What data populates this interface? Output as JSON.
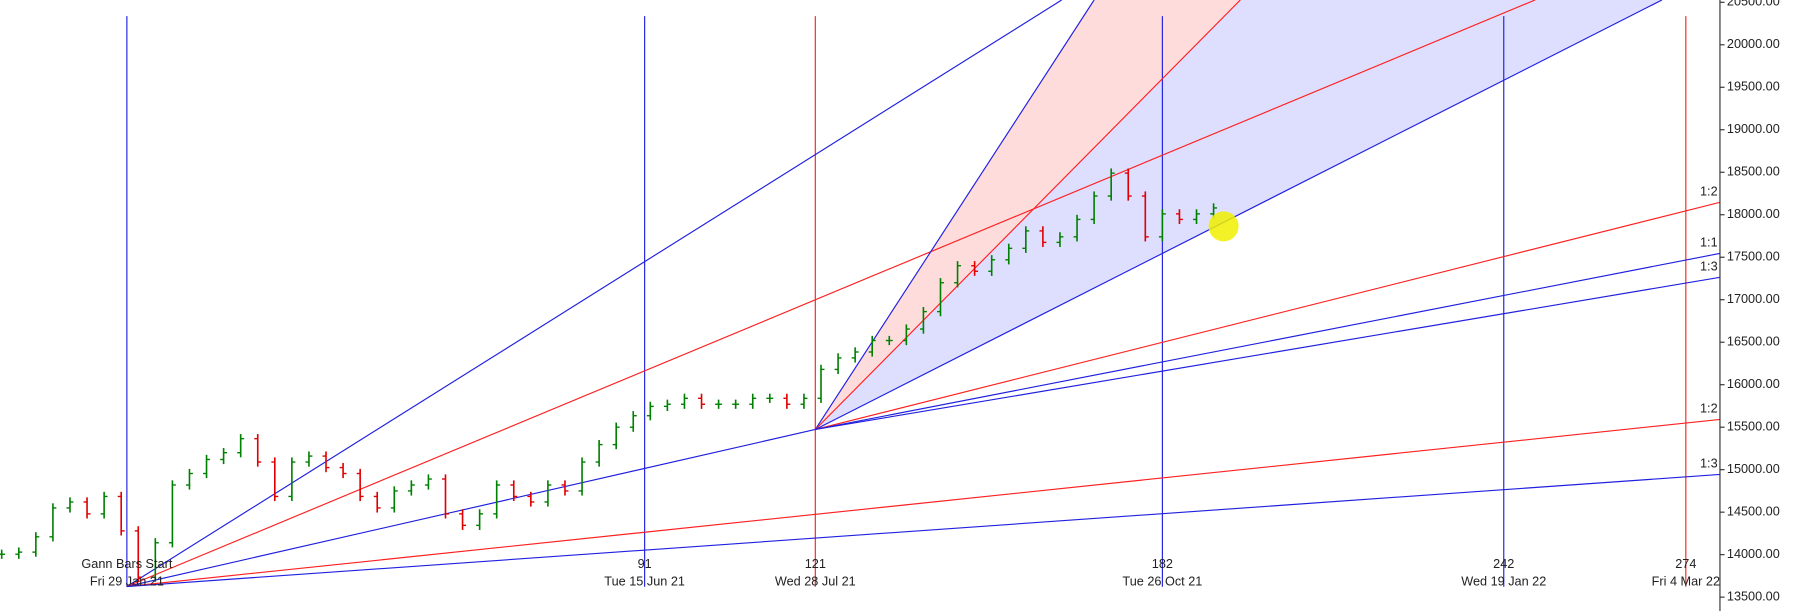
{
  "chart_data": {
    "type": "price-bars",
    "up_color": "#008000",
    "down_color": "#e00000",
    "xlim": [
      -22.3,
      280
    ],
    "ylim": [
      13337,
      20527
    ],
    "yticks": [
      {
        "value": 13500,
        "label": "13500.00"
      },
      {
        "value": 14000,
        "label": "14000.00"
      },
      {
        "value": 14500,
        "label": "14500.00"
      },
      {
        "value": 15000,
        "label": "15000.00"
      },
      {
        "value": 15500,
        "label": "15500.00"
      },
      {
        "value": 16000,
        "label": "16000.00"
      },
      {
        "value": 16500,
        "label": "16500.00"
      },
      {
        "value": 17000,
        "label": "17000.00"
      },
      {
        "value": 17500,
        "label": "17500.00"
      },
      {
        "value": 18000,
        "label": "18000.00"
      },
      {
        "value": 18500,
        "label": "18500.00"
      },
      {
        "value": 19000,
        "label": "19000.00"
      },
      {
        "value": 19500,
        "label": "19500.00"
      },
      {
        "value": 20000,
        "label": "20000.00"
      },
      {
        "value": 20500,
        "label": "20500.00"
      }
    ],
    "x": [
      -22,
      -19,
      -16,
      -13,
      -10,
      -7,
      -4,
      -1,
      2,
      5,
      8,
      11,
      14,
      17,
      20,
      23,
      26,
      29,
      32,
      35,
      38,
      41,
      44,
      47,
      50,
      53,
      56,
      59,
      62,
      65,
      68,
      71,
      74,
      77,
      80,
      83,
      86,
      89,
      92,
      95,
      98,
      101,
      104,
      107,
      110,
      113,
      116,
      119,
      122,
      125,
      128,
      131,
      134,
      137,
      140,
      143,
      146,
      149,
      152,
      155,
      158,
      161,
      164,
      167,
      170,
      173,
      176,
      179,
      182,
      185,
      188,
      191
    ],
    "close": [
      14005,
      14030,
      14210,
      14550,
      14620,
      14480,
      14685,
      14280,
      13735,
      14140,
      14820,
      14955,
      15120,
      15200,
      15365,
      15090,
      14685,
      15090,
      15160,
      15025,
      14955,
      14685,
      14550,
      14750,
      14820,
      14890,
      14480,
      14345,
      14480,
      14820,
      14685,
      14620,
      14820,
      14750,
      15090,
      15295,
      15500,
      15635,
      15745,
      15770,
      15840,
      15770,
      15770,
      15770,
      15840,
      15840,
      15770,
      15840,
      16180,
      16315,
      16385,
      16520,
      16520,
      16655,
      16860,
      17200,
      17400,
      17335,
      17470,
      17605,
      17810,
      17675,
      17740,
      17945,
      18220,
      18490,
      18220,
      17740,
      18010,
      17945,
      18010,
      18080
    ],
    "verticals": [
      {
        "index": 0,
        "color": "#2020e0",
        "label": "Gann Bars Start",
        "date": "Fri 29 Jan 21"
      },
      {
        "index": 91,
        "color": "#2020e0",
        "date": "Tue 15 Jun 21"
      },
      {
        "index": 121,
        "color": "#ff2020",
        "date": "Wed 28 Jul 21"
      },
      {
        "index": 182,
        "color": "#2020e0",
        "date": "Tue 26 Oct 21"
      },
      {
        "index": 242,
        "color": "#2020e0",
        "date": "Wed 19 Jan 22"
      },
      {
        "index": 274,
        "color": "#ff2020",
        "date": "Fri 4 Mar 22"
      }
    ],
    "fan_lines": [
      {
        "from": [
          0,
          13625
        ],
        "to": [
          164.3,
          20527
        ],
        "color": "#2020e0"
      },
      {
        "from": [
          0,
          13625
        ],
        "to": [
          247.5,
          20527
        ],
        "color": "#ff2020"
      },
      {
        "from": [
          0,
          13625
        ],
        "to": [
          121,
          15473
        ],
        "color": "#2020e0"
      },
      {
        "from": [
          0,
          13625
        ],
        "to": [
          282.6,
          15609
        ],
        "color": "#ff2020",
        "label": "1:2"
      },
      {
        "from": [
          0,
          13625
        ],
        "to": [
          282.6,
          14956
        ],
        "color": "#2020e0",
        "label": "1:3"
      },
      {
        "from": [
          121,
          15473
        ],
        "to": [
          170,
          20527
        ],
        "color": "#2020e0"
      },
      {
        "from": [
          121,
          15473
        ],
        "to": [
          195.7,
          20527
        ],
        "color": "#ff2020"
      },
      {
        "from": [
          121,
          15473
        ],
        "to": [
          269.8,
          20527
        ],
        "color": "#2020e0"
      },
      {
        "from": [
          121,
          15473
        ],
        "to": [
          282.6,
          18190
        ],
        "color": "#ff2020",
        "label": "1:2"
      },
      {
        "from": [
          121,
          15473
        ],
        "to": [
          282.6,
          17579
        ],
        "color": "#2020e0",
        "label": "1:1"
      },
      {
        "from": [
          121,
          15473
        ],
        "to": [
          282.6,
          17293
        ],
        "color": "#2020e0",
        "label": "1:3"
      }
    ],
    "fills": [
      {
        "between": [
          5,
          6
        ],
        "color": "#ffdcdc"
      },
      {
        "between": [
          6,
          7
        ],
        "color": "#dedeff"
      }
    ]
  }
}
